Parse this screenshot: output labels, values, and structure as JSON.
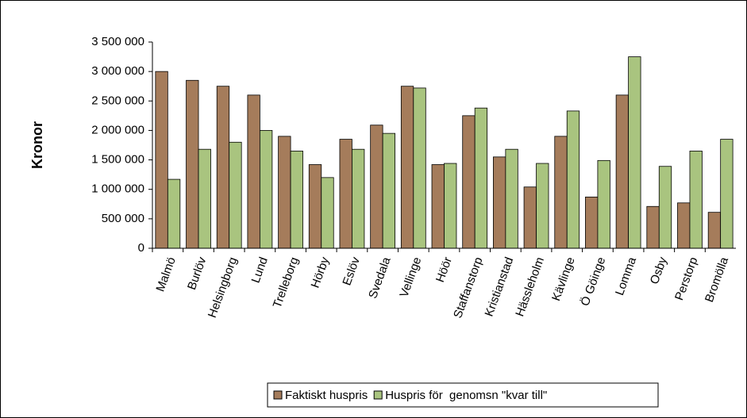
{
  "chart_data": {
    "type": "bar",
    "y_label": "Kronor",
    "categories": [
      "Malmö",
      "Burlöv",
      "Helsingborg",
      "Lund",
      "Trelleborg",
      "Hörby",
      "Eslöv",
      "Svedala",
      "Vellinge",
      "Höör",
      "Staffanstorp",
      "Kristianstad",
      "Hässleholm",
      "Kävlinge",
      "Ö Göinge",
      "Lomma",
      "Osby",
      "Perstorp",
      "Bromölla"
    ],
    "series": [
      {
        "name": "Faktiskt huspris",
        "color": "#a57c5b",
        "values": [
          3000000,
          2850000,
          2750000,
          2600000,
          1900000,
          1420000,
          1850000,
          2090000,
          2750000,
          1420000,
          2250000,
          1550000,
          1040000,
          1900000,
          870000,
          2600000,
          710000,
          770000,
          610000
        ]
      },
      {
        "name": "Huspris för  genomsn \"kvar till\"",
        "color": "#a9c47f",
        "values": [
          1170000,
          1680000,
          1800000,
          2000000,
          1650000,
          1200000,
          1680000,
          1950000,
          2720000,
          1440000,
          2380000,
          1680000,
          1440000,
          2330000,
          1490000,
          3250000,
          1390000,
          1650000,
          1850000
        ]
      }
    ],
    "ylim": [
      0,
      3500000
    ],
    "yticks": [
      0,
      {
        "value": 500000,
        "label": "500 000"
      },
      {
        "value": 1000000,
        "label": "1 000 000"
      },
      {
        "value": 1500000,
        "label": "1 500 000"
      },
      {
        "value": 2000000,
        "label": "2 000 000"
      },
      {
        "value": 2500000,
        "label": "2 500 000"
      },
      {
        "value": 3000000,
        "label": "3 000 000"
      },
      {
        "value": 3500000,
        "label": "3 500 000"
      }
    ],
    "legend": "bottom"
  }
}
